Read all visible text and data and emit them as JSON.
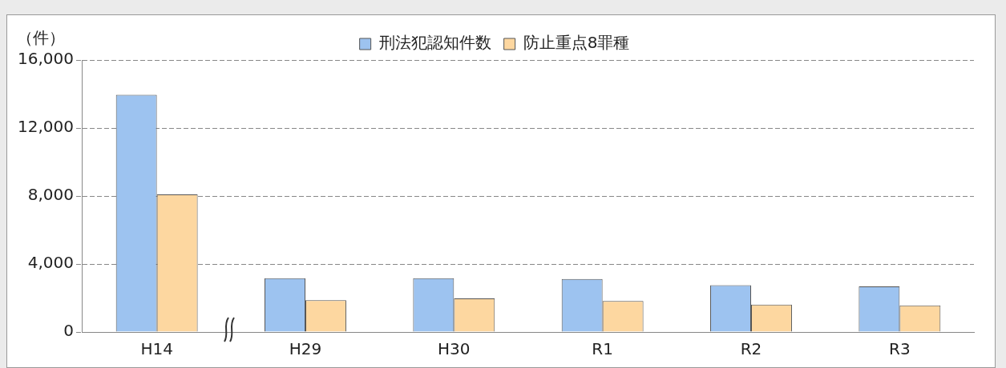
{
  "chart_data": {
    "type": "bar",
    "ylabel": "（件）",
    "categories": [
      "H14",
      "H29",
      "H30",
      "R1",
      "R2",
      "R3"
    ],
    "series": [
      {
        "name": "刑法犯認知件数",
        "color": "#9dc3f0",
        "values": [
          13950,
          3170,
          3170,
          3120,
          2750,
          2680
        ]
      },
      {
        "name": "防止重点8罪種",
        "color": "#fdd7a0",
        "values": [
          8100,
          1870,
          1980,
          1820,
          1610,
          1560
        ]
      }
    ],
    "ylim": [
      0,
      16000
    ],
    "yticks": [
      0,
      {
        "value": 4000,
        "label": "4,000"
      },
      {
        "value": 8000,
        "label": "8,000"
      },
      {
        "value": 12000,
        "label": "12,000"
      },
      {
        "value": 16000,
        "label": "16,000"
      }
    ],
    "grid": "y",
    "legend": "top"
  }
}
